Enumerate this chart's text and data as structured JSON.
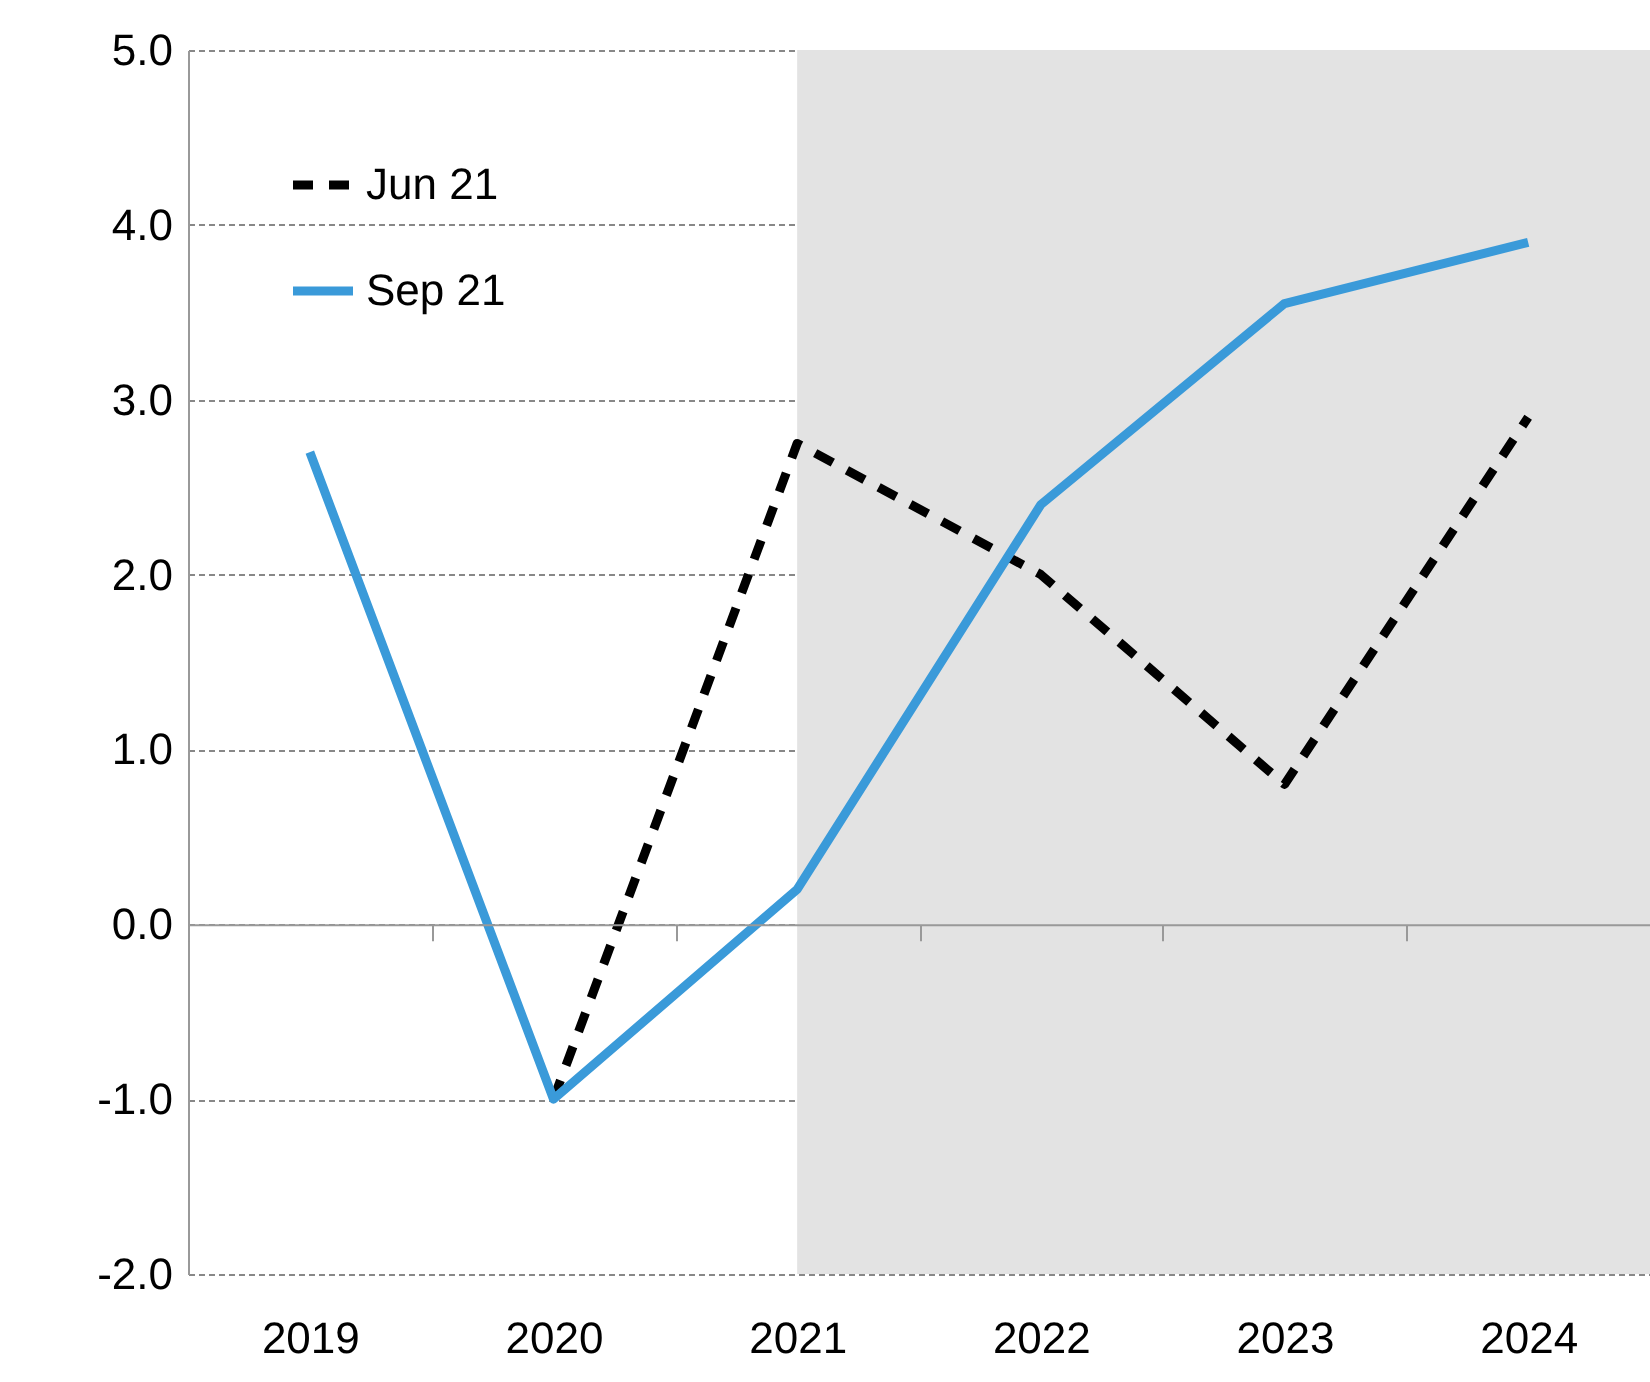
{
  "chart_data": {
    "type": "line",
    "categories": [
      "2019",
      "2020",
      "2021",
      "2022",
      "2023",
      "2024"
    ],
    "series": [
      {
        "name": "Jun 21",
        "color": "#000000",
        "line_style": "dashed",
        "values": [
          null,
          -1.0,
          2.75,
          2.0,
          0.8,
          2.9
        ]
      },
      {
        "name": "Sep 21",
        "color": "#3a9ad9",
        "line_style": "solid",
        "values": [
          2.7,
          -1.0,
          0.2,
          2.4,
          3.55,
          3.9
        ]
      }
    ],
    "ylim": [
      -2,
      5
    ],
    "yticks": [
      {
        "value": -2,
        "label": "-2.0"
      },
      {
        "value": -1,
        "label": "-1.0"
      },
      {
        "value": 0,
        "label": "0.0"
      },
      {
        "value": 1,
        "label": "1.0"
      },
      {
        "value": 2,
        "label": "2.0"
      },
      {
        "value": 3,
        "label": "3.0"
      },
      {
        "value": 4,
        "label": "4.0"
      },
      {
        "value": 5,
        "label": "5.0"
      }
    ],
    "bands": [
      {
        "axis": "x",
        "from": "2021",
        "to": "2024",
        "color": "#e3e3e3"
      }
    ],
    "grid": "y",
    "legend": "top left"
  }
}
